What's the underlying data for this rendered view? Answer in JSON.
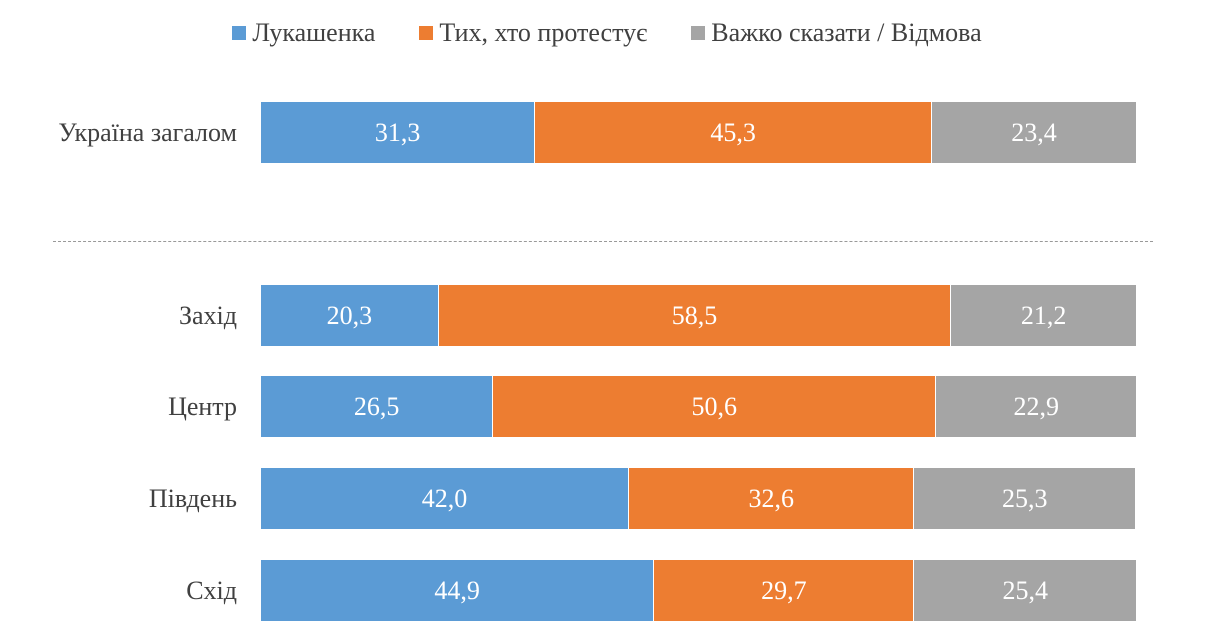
{
  "chart_data": {
    "type": "bar",
    "orientation": "horizontal",
    "stacked": true,
    "xlim": [
      0,
      100
    ],
    "grid": false,
    "legend_placement": "top",
    "categories": [
      "Україна загалом",
      "Захід",
      "Центр",
      "Південь",
      "Схід"
    ],
    "series": [
      {
        "name": "Лукашенка",
        "color": "#5B9BD5",
        "values": [
          31.3,
          20.3,
          26.5,
          42.0,
          44.9
        ],
        "labels": [
          "31,3",
          "20,3",
          "26,5",
          "42,0",
          "44,9"
        ]
      },
      {
        "name": "Тих, хто протестує",
        "color": "#ED7D31",
        "values": [
          45.3,
          58.5,
          50.6,
          32.6,
          29.7
        ],
        "labels": [
          "45,3",
          "58,5",
          "50,6",
          "32,6",
          "29,7"
        ]
      },
      {
        "name": "Важко сказати / Відмова",
        "color": "#A5A5A5",
        "values": [
          23.4,
          21.2,
          22.9,
          25.3,
          25.4
        ],
        "labels": [
          "23,4",
          "21,2",
          "22,9",
          "25,3",
          "25,4"
        ]
      }
    ]
  }
}
